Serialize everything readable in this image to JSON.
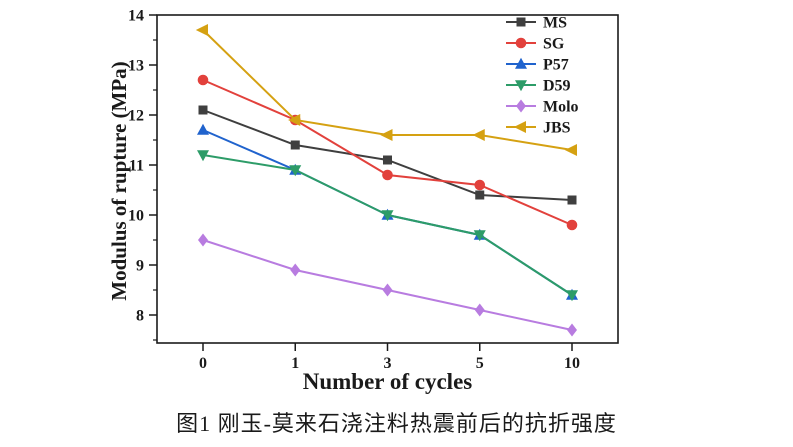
{
  "caption": "图1  刚玉-莫来石浇注料热震前后的抗折强度",
  "chart_data": {
    "type": "line",
    "categories": [
      "0",
      "1",
      "3",
      "5",
      "10"
    ],
    "xlabel": "Number of cycles",
    "ylabel": "Modulus of rupture (MPa)",
    "ylim": [
      7.44,
      14
    ],
    "yticks": [
      8,
      9,
      10,
      11,
      12,
      13,
      14
    ],
    "y_minor_step": 0.5,
    "grid": false,
    "legend_position": "top-right-inside",
    "frame_color": "#1a1a1a",
    "series": [
      {
        "name": "MS",
        "color": "#3f3f3f",
        "marker": "square",
        "values": [
          12.1,
          11.4,
          11.1,
          10.4,
          10.3
        ]
      },
      {
        "name": "SG",
        "color": "#e2413c",
        "marker": "circle",
        "values": [
          12.7,
          11.9,
          10.8,
          10.6,
          9.8
        ]
      },
      {
        "name": "P57",
        "color": "#2063cd",
        "marker": "triangle-up",
        "values": [
          11.7,
          10.9,
          10.0,
          9.6,
          8.4
        ]
      },
      {
        "name": "D59",
        "color": "#2d9c68",
        "marker": "triangle-down",
        "values": [
          11.2,
          10.9,
          10.0,
          9.6,
          8.4
        ]
      },
      {
        "name": "Molo",
        "color": "#b87ce0",
        "marker": "diamond",
        "values": [
          9.5,
          8.9,
          8.5,
          8.1,
          7.7
        ]
      },
      {
        "name": "JBS",
        "color": "#d5a112",
        "marker": "triangle-left",
        "values": [
          13.7,
          11.9,
          11.6,
          11.6,
          11.3
        ]
      }
    ]
  }
}
